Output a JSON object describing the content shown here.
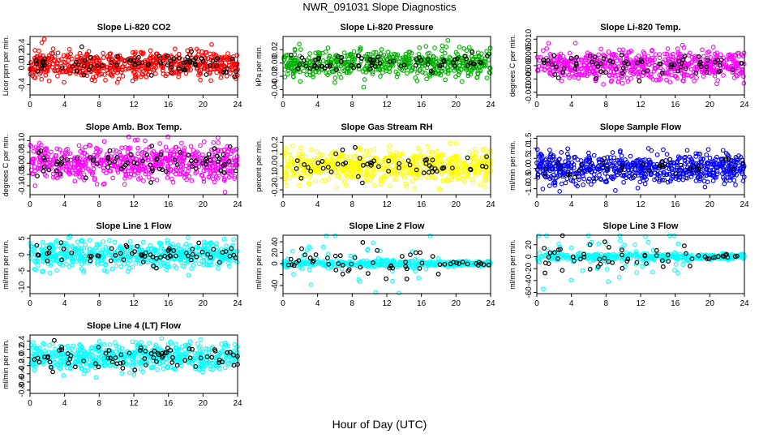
{
  "figure": {
    "title": "NWR_091031  Slope Diagnostics",
    "x_axis_label": "Hour of Day (UTC)"
  },
  "chart_data": [
    {
      "type": "scatter",
      "title": "Slope Li-820 CO2",
      "ylabel": "Licor ppm per min.",
      "xlim": [
        0,
        24
      ],
      "ylim": [
        -0.6,
        0.55
      ],
      "xticks": [
        0,
        4,
        8,
        12,
        16,
        20,
        24
      ],
      "yticks": [
        -0.4,
        0.0,
        0.2,
        0.4
      ],
      "ytick_labels": [
        "-0.4",
        "0.0",
        "0.2",
        "0.4"
      ],
      "point_color": "#ff0000",
      "n_points": 600,
      "n_highlight": 75,
      "spread": 0.14,
      "seed": 11
    },
    {
      "type": "scatter",
      "title": "Slope Li-820 Pressure",
      "ylabel": "kPa per min.",
      "xlim": [
        0,
        24
      ],
      "ylim": [
        -0.048,
        0.04
      ],
      "xticks": [
        0,
        4,
        8,
        12,
        16,
        20,
        24
      ],
      "yticks": [
        -0.04,
        -0.02,
        0.0,
        0.02
      ],
      "ytick_labels": [
        "-0.04",
        "-0.02",
        "0.00",
        "0.02"
      ],
      "point_color": "#00b000",
      "n_points": 560,
      "n_highlight": 70,
      "spread": 0.01,
      "seed": 23
    },
    {
      "type": "scatter",
      "title": "Slope Li-820 Temp.",
      "ylabel": "degrees C per min.",
      "xlim": [
        0,
        24
      ],
      "ylim": [
        -0.011,
        0.011
      ],
      "xticks": [
        0,
        4,
        8,
        12,
        16,
        20,
        24
      ],
      "yticks": [
        -0.01,
        -0.005,
        0.0,
        0.005,
        0.01
      ],
      "ytick_labels": [
        "-0.010",
        "-0.005",
        "0.000",
        "0.005",
        "0.010"
      ],
      "point_color": "#ff00ff",
      "n_points": 600,
      "n_highlight": 70,
      "spread": 0.0028,
      "seed": 37
    },
    {
      "type": "scatter",
      "title": "Slope Amb. Box Temp.",
      "ylabel": "degrees C per min.",
      "xlim": [
        0,
        24
      ],
      "ylim": [
        -0.14,
        0.12
      ],
      "xticks": [
        0,
        4,
        8,
        12,
        16,
        20,
        24
      ],
      "yticks": [
        -0.1,
        -0.05,
        0.0,
        0.05,
        0.1
      ],
      "ytick_labels": [
        "-0.10",
        "-0.05",
        "0.00",
        "0.05",
        "0.10"
      ],
      "point_color": "#ff00ff",
      "n_points": 600,
      "n_highlight": 75,
      "spread": 0.04,
      "seed": 41
    },
    {
      "type": "scatter",
      "title": "Slope Gas Stream RH",
      "ylabel": "percent per min.",
      "xlim": [
        0,
        24
      ],
      "ylim": [
        -0.24,
        0.25
      ],
      "xticks": [
        0,
        4,
        8,
        12,
        16,
        20,
        24
      ],
      "yticks": [
        -0.2,
        -0.1,
        0.0,
        0.1,
        0.2
      ],
      "ytick_labels": [
        "-0.2",
        "-0.1",
        "0.0",
        "0.1",
        "0.2"
      ],
      "point_color": "#ffff00",
      "n_points": 620,
      "n_highlight": 55,
      "spread": 0.07,
      "seed": 53
    },
    {
      "type": "scatter",
      "title": "Slope Sample Flow",
      "ylabel": "ml/min per min.",
      "xlim": [
        0,
        24
      ],
      "ylim": [
        -1.3,
        1.6
      ],
      "xticks": [
        0,
        4,
        8,
        12,
        16,
        20,
        24
      ],
      "yticks": [
        -1.0,
        -0.5,
        0.0,
        0.5,
        1.0,
        1.5
      ],
      "ytick_labels": [
        "-1.0",
        "-0.5",
        "0.0",
        "0.5",
        "1.0",
        "1.5"
      ],
      "point_color": "#0000ff",
      "n_points": 620,
      "n_highlight": 40,
      "spread": 0.35,
      "seed": 67
    },
    {
      "type": "scatter",
      "title": "Slope Line 1 Flow",
      "ylabel": "ml/min per min.",
      "xlim": [
        0,
        24
      ],
      "ylim": [
        -12,
        6
      ],
      "xticks": [
        0,
        4,
        8,
        12,
        16,
        20,
        24
      ],
      "yticks": [
        -10,
        -5,
        0,
        5
      ],
      "ytick_labels": [
        "-10",
        "-5",
        "0",
        "5"
      ],
      "point_color": "#00ffff",
      "n_points": 540,
      "n_highlight": 65,
      "spread": 2.0,
      "seed": 71
    },
    {
      "type": "scatter",
      "title": "Slope Line 2 Flow",
      "ylabel": "ml/min per min.",
      "xlim": [
        0,
        24
      ],
      "ylim": [
        -55,
        52
      ],
      "xticks": [
        0,
        4,
        8,
        12,
        16,
        20,
        24
      ],
      "yticks": [
        -40,
        -20,
        0,
        20,
        40
      ],
      "ytick_labels": [
        "-40",
        "",
        "0",
        "20",
        "40"
      ],
      "point_color": "#00ffff",
      "n_points": 420,
      "n_highlight": 60,
      "spread": 7,
      "seed": 83
    },
    {
      "type": "scatter",
      "title": "Slope Line 3 Flow",
      "ylabel": "ml/min per min.",
      "xlim": [
        0,
        24
      ],
      "ylim": [
        -62,
        36
      ],
      "xticks": [
        0,
        4,
        8,
        12,
        16,
        20,
        24
      ],
      "yticks": [
        -60,
        -40,
        -20,
        0,
        20
      ],
      "ytick_labels": [
        "-60",
        "-40",
        "-20",
        "0",
        "20"
      ],
      "point_color": "#00ffff",
      "n_points": 420,
      "n_highlight": 60,
      "spread": 7,
      "seed": 97
    },
    {
      "type": "scatter",
      "title": "Slope Line 4 (LT) Flow",
      "ylabel": "ml/min per min.",
      "xlim": [
        0,
        24
      ],
      "ylim": [
        -0.88,
        0.55
      ],
      "xticks": [
        0,
        4,
        8,
        12,
        16,
        20,
        24
      ],
      "yticks": [
        -0.8,
        -0.6,
        -0.4,
        -0.2,
        0.0,
        0.2,
        0.4
      ],
      "ytick_labels": [
        "-0.8",
        "-0.6",
        "-0.4",
        "-0.2",
        "0.0",
        "0.2",
        "0.4"
      ],
      "point_color": "#00ffff",
      "n_points": 560,
      "n_highlight": 75,
      "spread": 0.17,
      "seed": 109
    }
  ]
}
